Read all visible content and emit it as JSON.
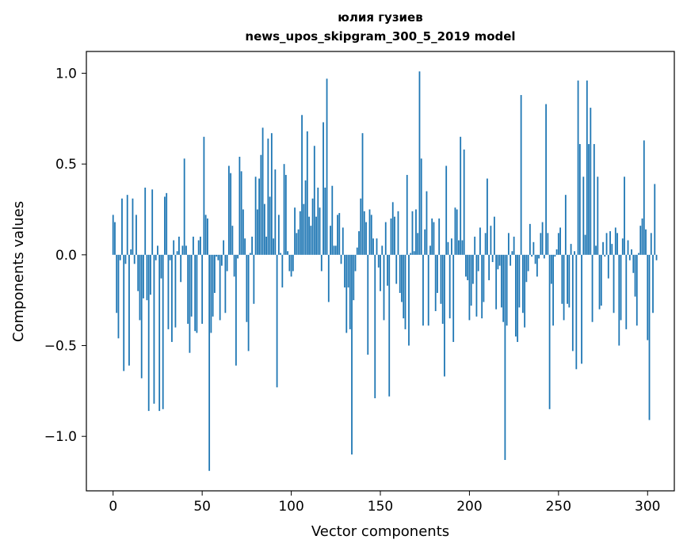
{
  "chart_data": {
    "type": "bar",
    "title": "юлия гузиев",
    "subtitle": "news_upos_skipgram_300_5_2019 model",
    "xlabel": "Vector components",
    "ylabel": "Components values",
    "xlim": [
      -15,
      315
    ],
    "ylim": [
      -1.3,
      1.12
    ],
    "xticks": [
      0,
      50,
      100,
      150,
      200,
      250,
      300
    ],
    "xtick_labels": [
      "0",
      "50",
      "100",
      "150",
      "200",
      "250",
      "300"
    ],
    "yticks": [
      -1.0,
      -0.5,
      0.0,
      0.5,
      1.0
    ],
    "ytick_labels": [
      "−1.0",
      "−0.5",
      "0.0",
      "0.5",
      "1.0"
    ],
    "grid": false,
    "bar_color": "#1f77b4",
    "values": [
      0.22,
      0.18,
      -0.32,
      -0.46,
      -0.03,
      0.31,
      -0.64,
      -0.05,
      0.33,
      -0.61,
      0.03,
      0.31,
      -0.05,
      0.22,
      -0.2,
      -0.36,
      -0.68,
      -0.24,
      0.37,
      -0.25,
      -0.86,
      -0.22,
      0.36,
      -0.82,
      -0.03,
      0.05,
      -0.86,
      -0.13,
      -0.85,
      0.32,
      0.34,
      -0.41,
      -0.03,
      -0.48,
      0.08,
      -0.4,
      0.02,
      0.1,
      -0.15,
      0.05,
      0.53,
      0.05,
      -0.38,
      -0.54,
      -0.34,
      0.1,
      -0.42,
      -0.43,
      0.08,
      0.1,
      -0.38,
      0.65,
      0.22,
      0.2,
      -1.19,
      -0.43,
      -0.34,
      -0.21,
      -0.01,
      -0.03,
      -0.36,
      -0.06,
      0.08,
      -0.32,
      -0.09,
      0.49,
      0.45,
      0.16,
      -0.12,
      -0.61,
      -0.02,
      0.54,
      0.46,
      0.25,
      0.09,
      -0.37,
      -0.53,
      0.01,
      0.1,
      -0.27,
      0.43,
      0.25,
      0.42,
      0.55,
      0.7,
      0.28,
      0.1,
      0.64,
      0.32,
      0.67,
      0.09,
      0.47,
      -0.73,
      0.22,
      0.01,
      -0.18,
      0.5,
      0.44,
      0.02,
      -0.09,
      -0.12,
      -0.09,
      0.26,
      0.12,
      0.14,
      0.24,
      0.77,
      0.28,
      0.41,
      0.68,
      0.21,
      0.16,
      0.31,
      0.6,
      0.21,
      0.37,
      0.26,
      -0.09,
      0.73,
      0.37,
      0.97,
      -0.26,
      0.16,
      0.38,
      0.05,
      0.05,
      0.22,
      0.23,
      -0.05,
      0.15,
      -0.18,
      -0.43,
      -0.18,
      -0.41,
      -1.1,
      -0.25,
      -0.09,
      0.04,
      0.13,
      0.31,
      0.67,
      0.24,
      0.18,
      -0.55,
      0.25,
      0.22,
      0.09,
      -0.79,
      0.09,
      -0.07,
      -0.2,
      0.05,
      -0.36,
      0.18,
      -0.17,
      -0.78,
      0.2,
      0.29,
      0.21,
      -0.16,
      0.24,
      -0.21,
      -0.26,
      -0.35,
      -0.41,
      0.44,
      -0.5,
      0.01,
      0.24,
      0.02,
      0.25,
      0.12,
      1.01,
      0.53,
      -0.39,
      0.14,
      0.35,
      -0.39,
      0.05,
      0.2,
      0.18,
      -0.31,
      -0.21,
      0.2,
      -0.27,
      -0.38,
      -0.67,
      0.49,
      0.07,
      -0.35,
      0.09,
      -0.48,
      0.26,
      0.25,
      0.08,
      0.65,
      0.08,
      0.58,
      -0.12,
      -0.14,
      -0.36,
      -0.28,
      -0.16,
      0.1,
      -0.34,
      -0.09,
      0.15,
      -0.35,
      -0.26,
      0.12,
      0.42,
      -0.14,
      0.16,
      -0.04,
      0.21,
      -0.3,
      -0.08,
      -0.06,
      -0.29,
      -0.37,
      -1.13,
      -0.39,
      0.12,
      -0.06,
      0.02,
      0.1,
      -0.45,
      -0.48,
      -0.29,
      0.88,
      -0.32,
      -0.4,
      -0.15,
      -0.09,
      0.17,
      -0.01,
      0.07,
      -0.05,
      -0.12,
      -0.02,
      0.12,
      0.18,
      -0.02,
      0.83,
      0.12,
      -0.85,
      -0.16,
      -0.39,
      -0.01,
      0.03,
      0.12,
      0.15,
      -0.27,
      -0.36,
      0.33,
      -0.27,
      -0.29,
      0.06,
      -0.53,
      0.02,
      -0.63,
      0.96,
      0.61,
      -0.6,
      0.43,
      0.11,
      0.96,
      0.61,
      0.81,
      -0.37,
      0.61,
      0.05,
      0.43,
      -0.3,
      -0.28,
      0.07,
      -0.01,
      0.12,
      -0.13,
      0.13,
      0.06,
      -0.32,
      0.15,
      0.12,
      -0.5,
      -0.36,
      0.09,
      0.43,
      -0.41,
      0.08,
      -0.03,
      0.03,
      -0.1,
      -0.23,
      -0.39,
      0.01,
      0.16,
      0.2,
      0.63,
      0.14,
      -0.47,
      -0.91,
      0.12,
      -0.32,
      0.39,
      -0.03
    ]
  }
}
